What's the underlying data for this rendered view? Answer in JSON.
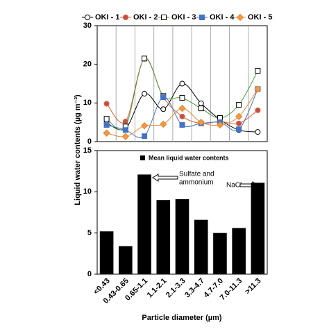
{
  "chart_data": [
    {
      "type": "line",
      "ylabel": "Liquid water contents (µg m⁻³)",
      "ylim": [
        0,
        30
      ],
      "yticks": [
        0,
        10,
        20,
        30
      ],
      "legend": "top",
      "grid": "vertical",
      "series": [
        {
          "name": "OKI - 1",
          "color": "#000000",
          "marker": "circle",
          "marker_fill": "#ffffff",
          "values": [
            4.8,
            3.4,
            12.4,
            8.4,
            15,
            9.9,
            5.7,
            3,
            2.5
          ]
        },
        {
          "name": "OKI - 2",
          "color": "#e05a2b",
          "marker": "circle",
          "marker_fill": "#c0504d",
          "values": [
            9.8,
            5.2,
            21.4,
            11.5,
            6.5,
            4.7,
            5.2,
            4.7,
            8.1
          ]
        },
        {
          "name": "OKI - 3",
          "color": "#4a9a3a",
          "marker": "square",
          "marker_fill": "#ffffff",
          "values": [
            5.9,
            3.9,
            21.5,
            11.8,
            11.3,
            8.6,
            6.1,
            9.5,
            18.3
          ]
        },
        {
          "name": "OKI - 4",
          "color": "#4472c4",
          "marker": "square",
          "marker_fill": "#4472c4",
          "values": [
            4.3,
            3,
            1.4,
            11.5,
            4.3,
            4.7,
            5,
            3.2,
            13.6
          ]
        },
        {
          "name": "OKI - 5",
          "color": "#e08a2b",
          "marker": "diamond",
          "marker_fill": "#f79646",
          "values": [
            2.2,
            1.3,
            4.1,
            4.5,
            8.6,
            5,
            4.3,
            6.5,
            13.6
          ]
        }
      ]
    },
    {
      "type": "bar",
      "xlabel": "Particle diameter (µm)",
      "categories": [
        "<0.43",
        "0.43-0.65",
        "0.65-1.1",
        "1.1-2.1",
        "2.1-3.3",
        "3.3-4.7",
        "4.7-7.0",
        "7.0-11.3",
        ">11.3"
      ],
      "series": [
        {
          "name": "Mean liquid water contents",
          "color": "#000000",
          "values": [
            5.2,
            3.4,
            12.1,
            9,
            9.1,
            6.6,
            5,
            5.6,
            11.1
          ]
        }
      ],
      "ylim": [
        0,
        15
      ],
      "yticks": [
        0,
        5,
        10,
        15
      ],
      "annotations": [
        "Sulfate and",
        "ammonium",
        "NaCl"
      ]
    }
  ]
}
